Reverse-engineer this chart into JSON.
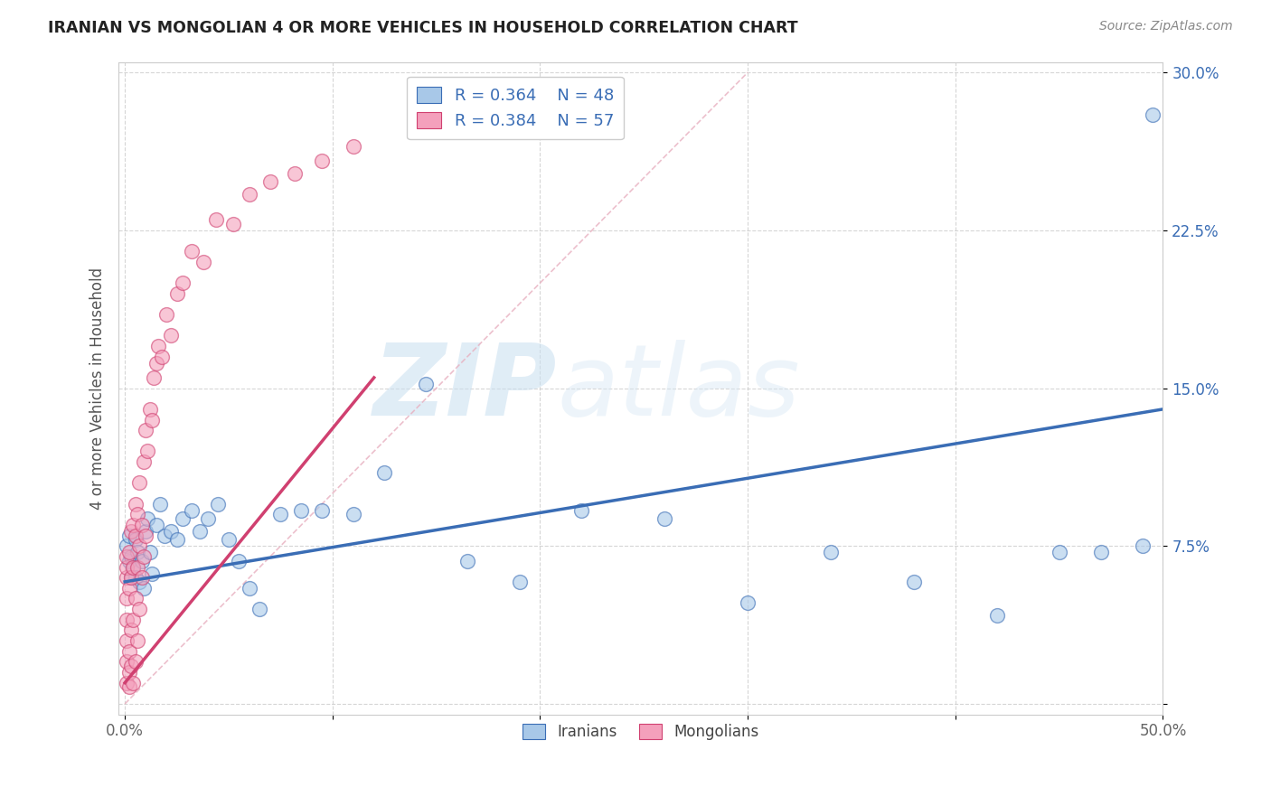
{
  "title": "IRANIAN VS MONGOLIAN 4 OR MORE VEHICLES IN HOUSEHOLD CORRELATION CHART",
  "source": "Source: ZipAtlas.com",
  "ylabel": "4 or more Vehicles in Household",
  "xmin": 0.0,
  "xmax": 0.5,
  "ymin": -0.005,
  "ymax": 0.305,
  "xticks": [
    0.0,
    0.1,
    0.2,
    0.3,
    0.4,
    0.5
  ],
  "yticks": [
    0.0,
    0.075,
    0.15,
    0.225,
    0.3
  ],
  "legend_blue_r": "R = 0.364",
  "legend_blue_n": "N = 48",
  "legend_pink_r": "R = 0.384",
  "legend_pink_n": "N = 57",
  "legend_blue_label": "Iranians",
  "legend_pink_label": "Mongolians",
  "blue_color": "#a8c8e8",
  "pink_color": "#f4a0bc",
  "blue_line_color": "#3a6db5",
  "pink_line_color": "#d04070",
  "diag_color": "#e8b0c0",
  "watermark": "ZIPatlas",
  "iranians_x": [
    0.001,
    0.002,
    0.002,
    0.003,
    0.003,
    0.004,
    0.005,
    0.005,
    0.006,
    0.007,
    0.008,
    0.009,
    0.01,
    0.011,
    0.012,
    0.013,
    0.015,
    0.017,
    0.019,
    0.022,
    0.025,
    0.028,
    0.032,
    0.036,
    0.04,
    0.045,
    0.05,
    0.055,
    0.06,
    0.065,
    0.075,
    0.085,
    0.095,
    0.11,
    0.125,
    0.145,
    0.165,
    0.19,
    0.22,
    0.26,
    0.3,
    0.34,
    0.38,
    0.42,
    0.45,
    0.47,
    0.49,
    0.495
  ],
  "iranians_y": [
    0.075,
    0.068,
    0.08,
    0.07,
    0.06,
    0.065,
    0.078,
    0.06,
    0.072,
    0.058,
    0.068,
    0.055,
    0.082,
    0.088,
    0.072,
    0.062,
    0.085,
    0.095,
    0.08,
    0.082,
    0.078,
    0.088,
    0.092,
    0.082,
    0.088,
    0.095,
    0.078,
    0.068,
    0.055,
    0.045,
    0.09,
    0.092,
    0.092,
    0.09,
    0.11,
    0.152,
    0.068,
    0.058,
    0.092,
    0.088,
    0.048,
    0.072,
    0.058,
    0.042,
    0.072,
    0.072,
    0.075,
    0.28
  ],
  "mongolians_x": [
    0.001,
    0.001,
    0.001,
    0.001,
    0.001,
    0.001,
    0.001,
    0.001,
    0.002,
    0.002,
    0.002,
    0.002,
    0.002,
    0.003,
    0.003,
    0.003,
    0.003,
    0.004,
    0.004,
    0.004,
    0.004,
    0.005,
    0.005,
    0.005,
    0.005,
    0.006,
    0.006,
    0.006,
    0.007,
    0.007,
    0.007,
    0.008,
    0.008,
    0.009,
    0.009,
    0.01,
    0.01,
    0.011,
    0.012,
    0.013,
    0.014,
    0.015,
    0.016,
    0.018,
    0.02,
    0.022,
    0.025,
    0.028,
    0.032,
    0.038,
    0.044,
    0.052,
    0.06,
    0.07,
    0.082,
    0.095,
    0.11
  ],
  "mongolians_y": [
    0.01,
    0.02,
    0.03,
    0.04,
    0.05,
    0.06,
    0.065,
    0.07,
    0.008,
    0.015,
    0.025,
    0.055,
    0.072,
    0.018,
    0.035,
    0.06,
    0.082,
    0.01,
    0.04,
    0.065,
    0.085,
    0.02,
    0.05,
    0.08,
    0.095,
    0.03,
    0.065,
    0.09,
    0.045,
    0.075,
    0.105,
    0.06,
    0.085,
    0.07,
    0.115,
    0.08,
    0.13,
    0.12,
    0.14,
    0.135,
    0.155,
    0.162,
    0.17,
    0.165,
    0.185,
    0.175,
    0.195,
    0.2,
    0.215,
    0.21,
    0.23,
    0.228,
    0.242,
    0.248,
    0.252,
    0.258,
    0.265
  ],
  "pink_line_x": [
    0.0,
    0.12
  ],
  "pink_line_y": [
    0.01,
    0.155
  ],
  "blue_line_x": [
    0.0,
    0.5
  ],
  "blue_line_y": [
    0.058,
    0.14
  ]
}
